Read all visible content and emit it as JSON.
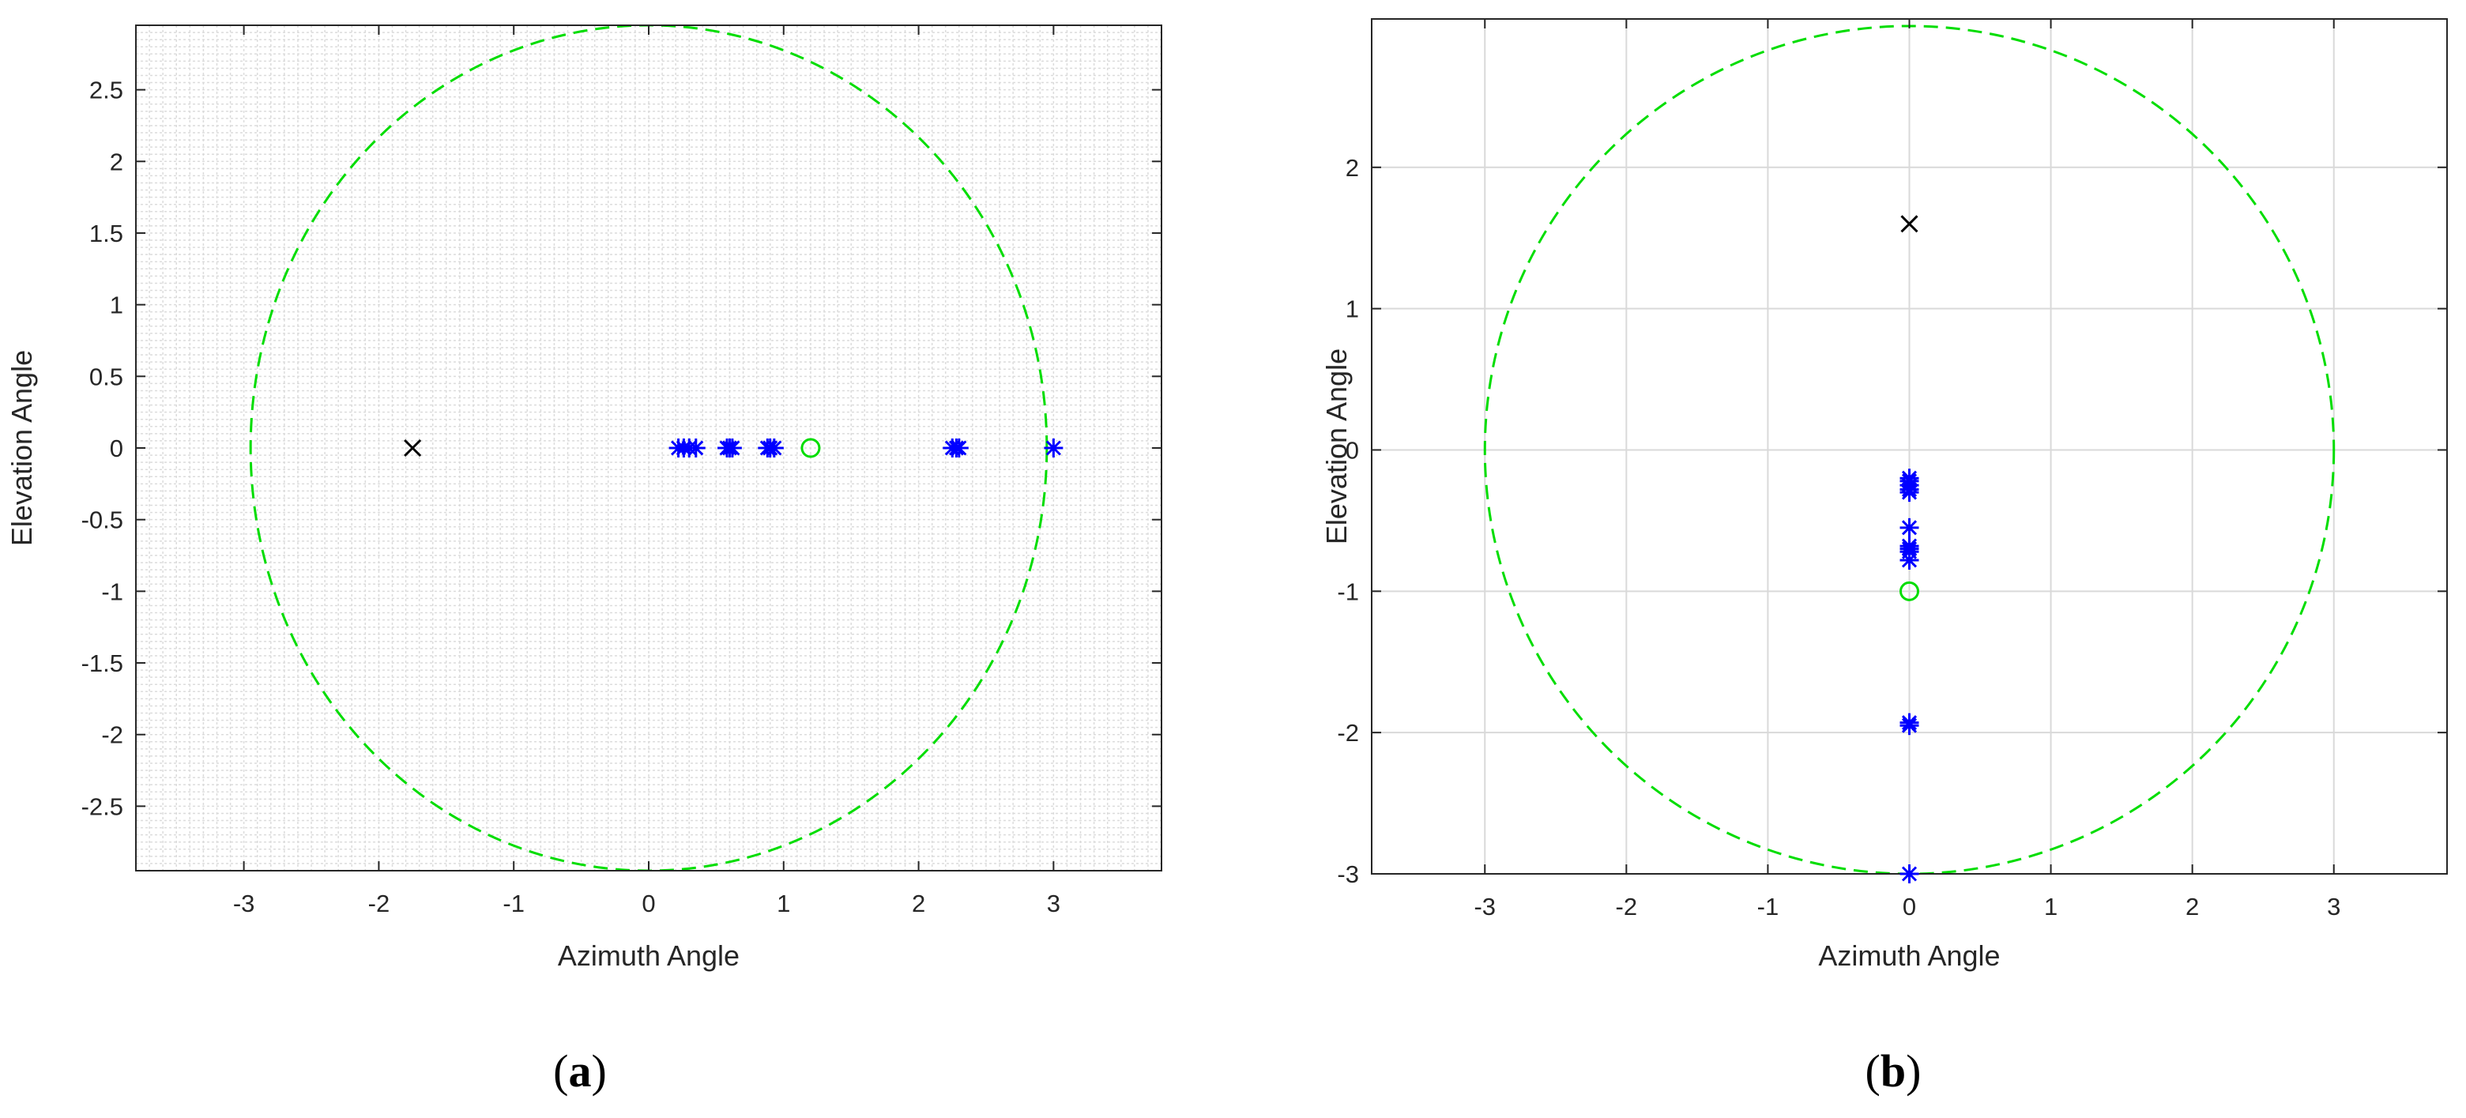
{
  "chart_data": [
    {
      "type": "scatter",
      "panel_label": "a",
      "xlabel": "Azimuth Angle",
      "ylabel": "Elevation Angle",
      "xlim": [
        -3.8,
        3.8
      ],
      "ylim": [
        -2.95,
        2.95
      ],
      "xticks": [
        -3,
        -2,
        -1,
        0,
        1,
        2,
        3
      ],
      "xtick_labels": [
        "-3",
        "-2",
        "-1",
        "0",
        "1",
        "2",
        "3"
      ],
      "yticks": [
        -2.5,
        -2,
        -1.5,
        -1,
        -0.5,
        0,
        0.5,
        1,
        1.5,
        2,
        2.5
      ],
      "ytick_labels": [
        "-2.5",
        "-2",
        "-1.5",
        "-1",
        "-0.5",
        "0",
        "0.5",
        "1",
        "1.5",
        "2",
        "2.5"
      ],
      "grid": "dense-minor",
      "circle": {
        "center": [
          0,
          0
        ],
        "radius": 2.95,
        "style": "dashed",
        "color": "#00dd00"
      },
      "series": [
        {
          "marker": "asterisk",
          "color": "#0000ff",
          "points": [
            [
              0.22,
              0
            ],
            [
              0.26,
              0
            ],
            [
              0.3,
              0
            ],
            [
              0.35,
              0
            ],
            [
              0.58,
              0
            ],
            [
              0.6,
              0
            ],
            [
              0.62,
              0
            ],
            [
              0.88,
              0
            ],
            [
              0.9,
              0
            ],
            [
              0.93,
              0
            ],
            [
              2.25,
              0
            ],
            [
              2.28,
              0
            ],
            [
              2.3,
              0
            ],
            [
              3.0,
              0
            ]
          ]
        },
        {
          "marker": "x",
          "color": "#000000",
          "points": [
            [
              -1.75,
              0
            ]
          ]
        },
        {
          "marker": "circle",
          "color": "#00dd00",
          "points": [
            [
              1.2,
              0
            ]
          ]
        }
      ]
    },
    {
      "type": "scatter",
      "panel_label": "b",
      "xlabel": "Azimuth Angle",
      "ylabel": "Elevation Angle",
      "xlim": [
        -3.8,
        3.8
      ],
      "ylim": [
        -3,
        3.05
      ],
      "xticks": [
        -3,
        -2,
        -1,
        0,
        1,
        2,
        3
      ],
      "xtick_labels": [
        "-3",
        "-2",
        "-1",
        "0",
        "1",
        "2",
        "3"
      ],
      "yticks": [
        -3,
        -2,
        -1,
        0,
        1,
        2
      ],
      "ytick_labels": [
        "-3",
        "-2",
        "-1",
        "0",
        "1",
        "2"
      ],
      "grid": "major",
      "circle": {
        "center": [
          0,
          0
        ],
        "radius": 3,
        "style": "dashed",
        "color": "#00dd00"
      },
      "series": [
        {
          "marker": "asterisk",
          "color": "#0000ff",
          "points": [
            [
              0,
              -0.2
            ],
            [
              0,
              -0.22
            ],
            [
              0,
              -0.25
            ],
            [
              0,
              -0.28
            ],
            [
              0,
              -0.3
            ],
            [
              0,
              -0.55
            ],
            [
              0,
              -0.68
            ],
            [
              0,
              -0.7
            ],
            [
              0,
              -0.72
            ],
            [
              0,
              -0.78
            ],
            [
              0,
              -1.93
            ],
            [
              0,
              -1.95
            ],
            [
              0,
              -3.0
            ]
          ]
        },
        {
          "marker": "x",
          "color": "#000000",
          "points": [
            [
              0,
              1.6
            ]
          ]
        },
        {
          "marker": "circle",
          "color": "#00dd00",
          "points": [
            [
              0,
              -1.0
            ]
          ]
        }
      ]
    }
  ]
}
